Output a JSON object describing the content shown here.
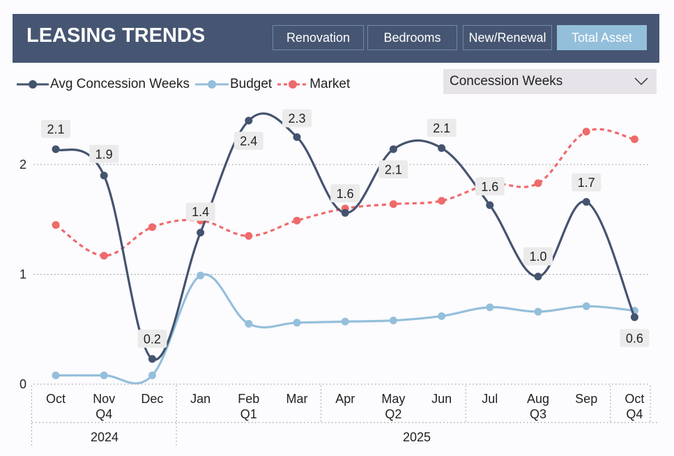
{
  "header": {
    "title": "LEASING TRENDS",
    "buttons": [
      {
        "label": "Renovation",
        "active": false
      },
      {
        "label": "Bedrooms",
        "active": false
      },
      {
        "label": "New/Renewal",
        "active": false
      },
      {
        "label": "Total Asset",
        "active": true
      }
    ]
  },
  "dropdown": {
    "value": "Concession Weeks",
    "icon": "chevron-down-icon"
  },
  "colors": {
    "header": "#465672",
    "avg": "#44546f",
    "budget": "#94bfdb",
    "market": "#ef6a6a",
    "active_button": "#94bfdb"
  },
  "chart_data": {
    "type": "line",
    "legend": "top-left",
    "grid": "horizontal dotted",
    "ylim": [
      0,
      2.45
    ],
    "yticks": [
      "0",
      "1",
      "2"
    ],
    "categories": [
      "Oct",
      "Nov",
      "Dec",
      "Jan",
      "Feb",
      "Mar",
      "Apr",
      "May",
      "Jun",
      "Jul",
      "Aug",
      "Sep",
      "Oct"
    ],
    "quarters": [
      {
        "label": "Q4",
        "span": 3
      },
      {
        "label": "Q1",
        "span": 3
      },
      {
        "label": "Q2",
        "span": 3
      },
      {
        "label": "Q3",
        "span": 3
      },
      {
        "label": "Q4",
        "span": 1
      }
    ],
    "years": [
      {
        "label": "2024",
        "span": 3
      },
      {
        "label": "2025",
        "span": 10
      }
    ],
    "series": [
      {
        "name": "Avg Concession Weeks",
        "values": [
          2.14,
          1.9,
          0.23,
          1.38,
          2.4,
          2.25,
          1.56,
          2.14,
          2.15,
          1.63,
          0.98,
          1.66,
          0.61
        ],
        "labels": [
          "2.1",
          "1.9",
          "0.2",
          "1.4",
          "2.4",
          "2.3",
          "1.6",
          "2.1",
          "2.1",
          "1.6",
          "1.0",
          "1.7",
          "0.6"
        ]
      },
      {
        "name": "Budget",
        "values": [
          0.08,
          0.08,
          0.08,
          0.99,
          0.55,
          0.56,
          0.57,
          0.58,
          0.62,
          0.7,
          0.66,
          0.71,
          0.67
        ]
      },
      {
        "name": "Market",
        "values": [
          1.45,
          1.17,
          1.43,
          1.49,
          1.35,
          1.49,
          1.6,
          1.64,
          1.67,
          1.82,
          1.83,
          2.3,
          2.23
        ],
        "style": "dashed"
      }
    ]
  }
}
